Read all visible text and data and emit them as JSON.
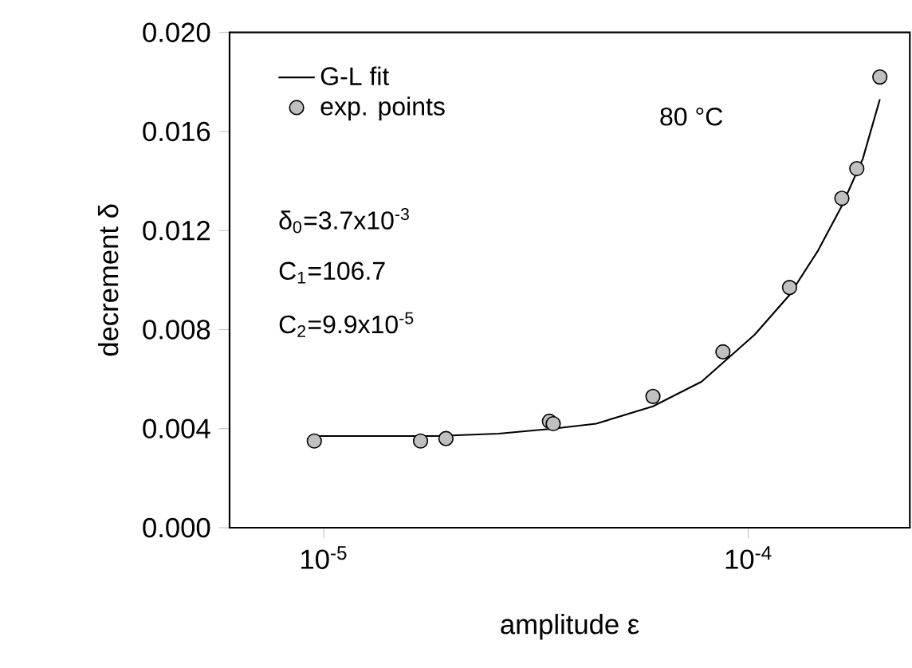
{
  "chart_data": {
    "type": "line",
    "xlabel": "amplitude ε",
    "ylabel": "decrement  δ",
    "log": "x",
    "xlim": [
      6e-06,
      0.00024
    ],
    "ylim": [
      0,
      0.02
    ],
    "xticks": [
      {
        "value": 1e-05,
        "label": "10$^{-5}$"
      },
      {
        "value": 0.0001,
        "label": "10$^{-4}$"
      }
    ],
    "yticks": [
      {
        "value": 0,
        "label": "0.000"
      },
      {
        "value": 0.004,
        "label": "0.004"
      },
      {
        "value": 0.008,
        "label": "0.008"
      },
      {
        "value": 0.012,
        "label": "0.012"
      },
      {
        "value": 0.016,
        "label": "0.016"
      },
      {
        "value": 0.02,
        "label": "0.020"
      }
    ],
    "legend": "top left",
    "grid": false,
    "annotations": [
      "80 °C",
      "δ$_{0}$=3.7x10$^{-3}$",
      "C$_{1}$=106.7",
      "C$_{2}$=9.9x10$^{-5}$"
    ],
    "series": [
      {
        "name": "G-L fit",
        "color": "#000000",
        "marker": "none",
        "line_style": "solid",
        "x": [
          9.5e-06,
          1.84e-05,
          2.58e-05,
          3.47e-05,
          4.38e-05,
          5.96e-05,
          7.76e-05,
          0.0001035,
          0.000125,
          0.000146,
          0.000166,
          0.000186,
          0.000204
        ],
        "values": [
          0.0037,
          0.0037,
          0.0038,
          0.004,
          0.0042,
          0.0049,
          0.0059,
          0.0078,
          0.0094,
          0.0112,
          0.013,
          0.0149,
          0.0173
        ]
      },
      {
        "name": "exp. points",
        "type": "scatter",
        "color": "#c0c0c0",
        "marker": "circle",
        "x": [
          9.5e-06,
          1.69e-05,
          1.94e-05,
          3.4e-05,
          3.47e-05,
          5.96e-05,
          8.71e-05,
          0.000125,
          0.000166,
          0.00018,
          0.000204
        ],
        "values": [
          0.0035,
          0.0035,
          0.0036,
          0.0043,
          0.0042,
          0.0053,
          0.0071,
          0.0097,
          0.0133,
          0.0145,
          0.0182
        ]
      }
    ]
  }
}
